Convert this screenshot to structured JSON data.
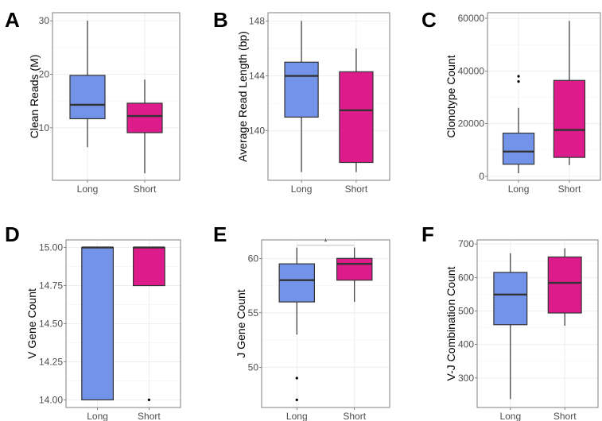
{
  "colors": {
    "Long": "#7293E8",
    "Short": "#DE1B8B",
    "box_outline": "#333333"
  },
  "chart_data": [
    {
      "type": "box",
      "panel": "A",
      "ylabel": "Clean Reads (M)",
      "ylim": [
        0.2,
        31.5
      ],
      "yticks": [
        10,
        20,
        30
      ],
      "ytick_labels": [
        "10",
        "20",
        "30"
      ],
      "categories": [
        "Long",
        "Short"
      ],
      "grid": true,
      "boxes": [
        {
          "category": "Long",
          "whisker_low": 6.4,
          "q1": 11.7,
          "median": 14.3,
          "q3": 19.8,
          "whisker_high": 30,
          "outliers": []
        },
        {
          "category": "Short",
          "whisker_low": 1.5,
          "q1": 9.1,
          "median": 12.2,
          "q3": 14.6,
          "whisker_high": 19,
          "outliers": []
        }
      ]
    },
    {
      "type": "box",
      "panel": "B",
      "ylabel": "Average Read Length (bp)",
      "ylim": [
        136.4,
        148.6
      ],
      "yticks": [
        140,
        144,
        148
      ],
      "ytick_labels": [
        "140",
        "144",
        "148"
      ],
      "categories": [
        "Long",
        "Short"
      ],
      "grid": true,
      "boxes": [
        {
          "category": "Long",
          "whisker_low": 137,
          "q1": 141,
          "median": 144,
          "q3": 145,
          "whisker_high": 148,
          "outliers": []
        },
        {
          "category": "Short",
          "whisker_low": 137,
          "q1": 137.7,
          "median": 141.5,
          "q3": 144.3,
          "whisker_high": 146,
          "outliers": []
        }
      ]
    },
    {
      "type": "box",
      "panel": "C",
      "ylabel": "Clonotype Count",
      "ylim": [
        -1500,
        62100
      ],
      "yticks": [
        0,
        20000,
        40000,
        60000
      ],
      "ytick_labels": [
        "0",
        "20000",
        "40000",
        "60000"
      ],
      "categories": [
        "Long",
        "Short"
      ],
      "grid": true,
      "boxes": [
        {
          "category": "Long",
          "whisker_low": 1200,
          "q1": 4600,
          "median": 9400,
          "q3": 16400,
          "whisker_high": 26000,
          "outliers": [
            36000,
            38000
          ]
        },
        {
          "category": "Short",
          "whisker_low": 4300,
          "q1": 7200,
          "median": 17600,
          "q3": 36400,
          "whisker_high": 59000,
          "outliers": []
        }
      ]
    },
    {
      "type": "box",
      "panel": "D",
      "ylabel": "V Gene Count",
      "ylim": [
        13.95,
        15.05
      ],
      "yticks": [
        14,
        14.25,
        14.5,
        14.75,
        15
      ],
      "ytick_labels": [
        "14.00",
        "14.25",
        "14.50",
        "14.75",
        "15.00"
      ],
      "categories": [
        "Long",
        "Short"
      ],
      "grid": true,
      "boxes": [
        {
          "category": "Long",
          "whisker_low": 14,
          "q1": 14,
          "median": 15,
          "q3": 15,
          "whisker_high": 15,
          "outliers": []
        },
        {
          "category": "Short",
          "whisker_low": 14.75,
          "q1": 14.75,
          "median": 15,
          "q3": 15,
          "whisker_high": 15,
          "outliers": [
            14
          ]
        }
      ]
    },
    {
      "type": "box",
      "panel": "E",
      "ylabel": "J Gene Count",
      "ylim": [
        46.3,
        61.7
      ],
      "yticks": [
        50,
        55,
        60
      ],
      "ytick_labels": [
        "50",
        "55",
        "60"
      ],
      "categories": [
        "Long",
        "Short"
      ],
      "grid": true,
      "significance": {
        "y": 61.2,
        "label": "*"
      },
      "boxes": [
        {
          "category": "Long",
          "whisker_low": 53,
          "q1": 56,
          "median": 58,
          "q3": 59.5,
          "whisker_high": 61,
          "outliers": [
            49,
            47
          ]
        },
        {
          "category": "Short",
          "whisker_low": 56,
          "q1": 58,
          "median": 59.5,
          "q3": 60,
          "whisker_high": 61,
          "outliers": []
        }
      ]
    },
    {
      "type": "box",
      "panel": "F",
      "ylabel": "V-J Combination Count",
      "ylim": [
        212,
        712
      ],
      "yticks": [
        300,
        400,
        500,
        600,
        700
      ],
      "ytick_labels": [
        "300",
        "400",
        "500",
        "600",
        "700"
      ],
      "categories": [
        "Long",
        "Short"
      ],
      "grid": true,
      "boxes": [
        {
          "category": "Long",
          "whisker_low": 237,
          "q1": 459,
          "median": 549,
          "q3": 615,
          "whisker_high": 672,
          "outliers": []
        },
        {
          "category": "Short",
          "whisker_low": 456,
          "q1": 494,
          "median": 584,
          "q3": 661,
          "whisker_high": 687,
          "outliers": []
        }
      ]
    }
  ]
}
